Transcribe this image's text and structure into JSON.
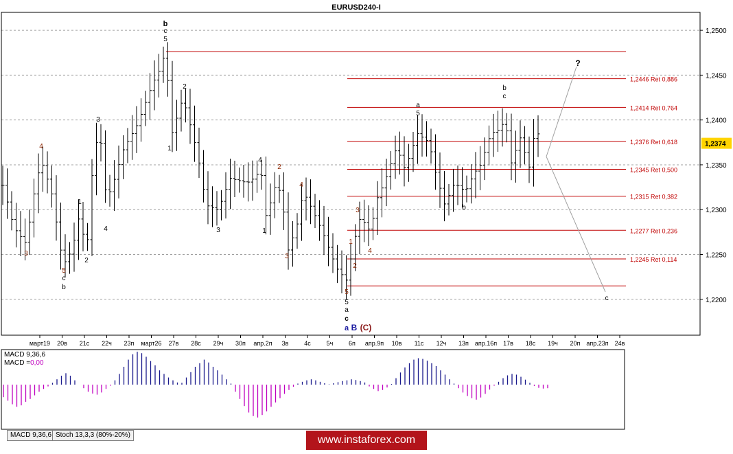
{
  "chart_data": {
    "type": "candlestick",
    "title": "EURUSD240-I",
    "current_price": "1,2374",
    "y_ticks": [
      "1,2500",
      "1,2450",
      "1,2400",
      "1,2350",
      "1,2300",
      "1,2250",
      "1,2200"
    ],
    "ylim": [
      1.216,
      1.252
    ],
    "x_ticks": [
      "март19",
      "20в",
      "21с",
      "22ч",
      "23п",
      "март26",
      "27в",
      "28с",
      "29ч",
      "30п",
      "апр.2п",
      "3в",
      "4с",
      "5ч",
      "6п",
      "апр.9п",
      "10в",
      "11с",
      "12ч",
      "13п",
      "апр.16п",
      "17в",
      "18с",
      "19ч",
      "20п",
      "апр.23п",
      "24в"
    ],
    "fib_levels": [
      {
        "price": 1.2476,
        "label": ""
      },
      {
        "price": 1.2446,
        "label": "1,2446 Ret 0,886"
      },
      {
        "price": 1.2414,
        "label": "1,2414 Ret 0,764"
      },
      {
        "price": 1.2376,
        "label": "1,2376 Ret 0,618"
      },
      {
        "price": 1.2345,
        "label": "1,2345 Ret 0,500"
      },
      {
        "price": 1.2315,
        "label": "1,2315 Ret 0,382"
      },
      {
        "price": 1.2277,
        "label": "1,2277 Ret 0,236"
      },
      {
        "price": 1.2245,
        "label": "1,2245 Ret 0,114"
      },
      {
        "price": 1.2215,
        "label": ""
      }
    ],
    "wave_labels": {
      "b_main": "b",
      "c_top": "c",
      "five_top": "5",
      "ones": "1",
      "twos": "2",
      "threes": "3",
      "fours": "4",
      "fives": "5",
      "a_small": "a",
      "b_small": "b",
      "c_small": "c",
      "big_a": "a",
      "big_b": "B",
      "big_c": "(C)",
      "question": "?"
    },
    "macd": {
      "label_name": "MACD 9,36,6",
      "label_value_prefix": "MACD =",
      "label_value": "0,00",
      "values": [
        -0.35,
        -0.45,
        -0.55,
        -0.62,
        -0.58,
        -0.48,
        -0.4,
        -0.3,
        -0.2,
        -0.12,
        -0.05,
        0.05,
        0.15,
        0.25,
        0.32,
        0.25,
        0.12,
        0.0,
        -0.1,
        -0.2,
        -0.25,
        -0.28,
        -0.22,
        -0.12,
        -0.03,
        0.12,
        0.3,
        0.5,
        0.7,
        0.85,
        0.92,
        0.88,
        0.78,
        0.66,
        0.54,
        0.4,
        0.3,
        0.2,
        0.12,
        0.06,
        0.05,
        0.2,
        0.35,
        0.5,
        0.6,
        0.7,
        0.62,
        0.5,
        0.4,
        0.28,
        0.15,
        0.03,
        -0.2,
        -0.4,
        -0.6,
        -0.78,
        -0.88,
        -0.92,
        -0.85,
        -0.75,
        -0.62,
        -0.5,
        -0.38,
        -0.26,
        -0.15,
        -0.06,
        0.03,
        0.08,
        0.12,
        0.15,
        0.12,
        0.08,
        0.04,
        0.01,
        0.04,
        0.07,
        0.1,
        0.12,
        0.15,
        0.13,
        0.1,
        0.06,
        -0.05,
        -0.12,
        -0.18,
        -0.15,
        -0.08,
        0.02,
        0.18,
        0.34,
        0.48,
        0.6,
        0.7,
        0.74,
        0.72,
        0.67,
        0.6,
        0.52,
        0.4,
        0.28,
        0.15,
        0.03,
        -0.1,
        -0.22,
        -0.32,
        -0.38,
        -0.42,
        -0.36,
        -0.26,
        -0.14,
        -0.03,
        0.08,
        0.18,
        0.26,
        0.3,
        0.28,
        0.22,
        0.14,
        0.05,
        -0.04,
        -0.09,
        -0.11,
        -0.1
      ]
    }
  },
  "tabs": [
    "MACD 9,36,6",
    "Stoch 13,3,3 (80%-20%)"
  ],
  "watermark": "www.instaforex.com"
}
